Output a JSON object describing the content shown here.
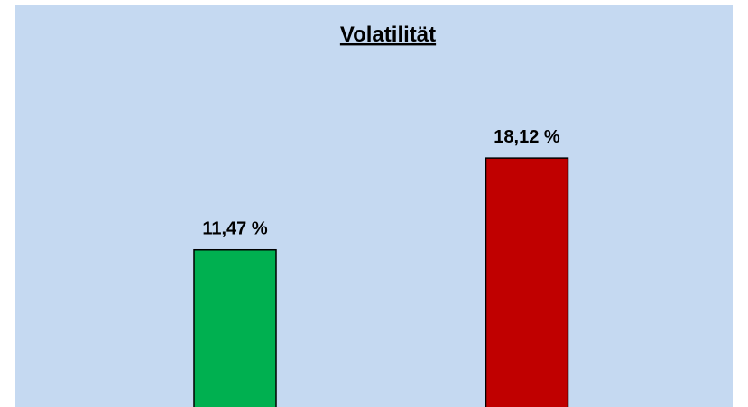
{
  "chart_data": {
    "type": "bar",
    "title": "Volatilität",
    "values": [
      11.47,
      18.12
    ],
    "value_labels": [
      "11,47 %",
      "18,12 %"
    ],
    "colors": [
      "#00b050",
      "#c00000"
    ]
  }
}
